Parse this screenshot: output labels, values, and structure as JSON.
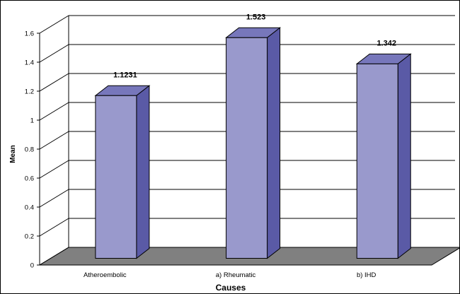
{
  "chart_data": {
    "type": "bar",
    "style": "3d-column",
    "title": "",
    "xlabel": "Causes",
    "ylabel": "Mean",
    "categories": [
      "Atheroembolic",
      "a) Rheumatic",
      "b) IHD"
    ],
    "values": [
      1.1231,
      1.523,
      1.342
    ],
    "data_labels": [
      "1.1231",
      "1.523",
      "1.342"
    ],
    "y_ticks": [
      "0",
      "0.2",
      "0.4",
      "0.6",
      "0.8",
      "1",
      "1.2",
      "1.4",
      "1.6"
    ],
    "ylim": [
      0,
      1.6
    ],
    "grid": true,
    "legend": "none",
    "colors": {
      "bar_front": "#9999cc",
      "bar_side": "#5a5aa6",
      "bar_top": "#7777bb",
      "floor": "#808080",
      "grid": "#000000"
    }
  }
}
